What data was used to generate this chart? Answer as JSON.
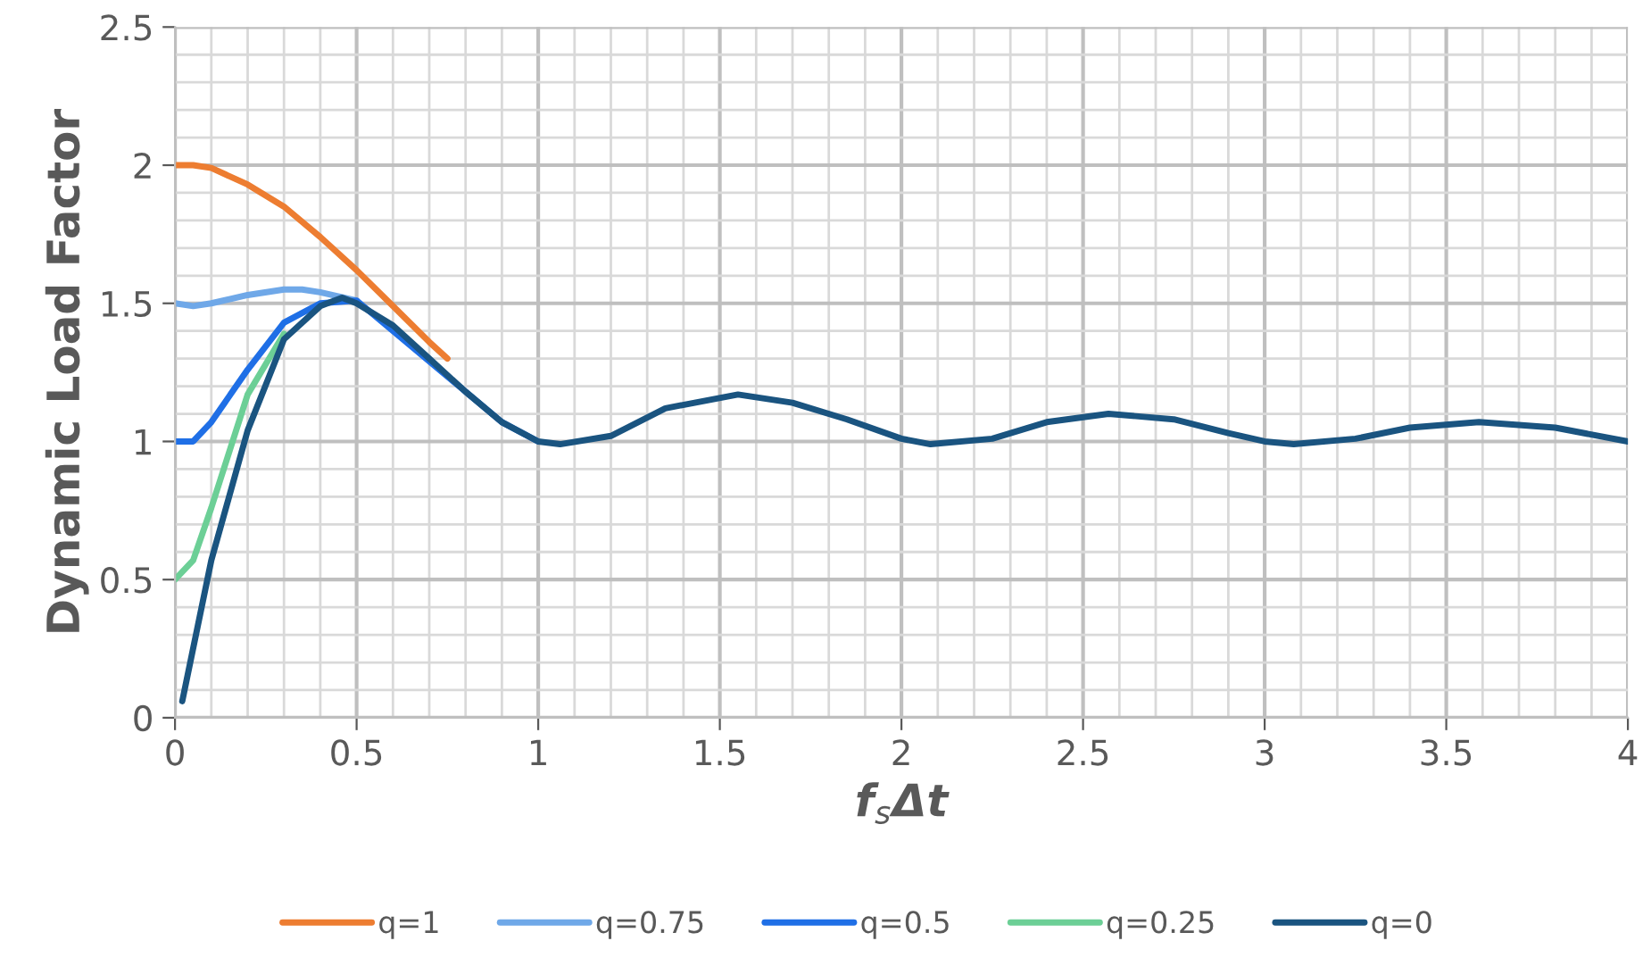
{
  "chart_data": {
    "type": "line",
    "xlabel": "f$_{s}$Δt",
    "ylabel": "Dynamic Load Factor",
    "xlim": [
      0,
      4
    ],
    "ylim": [
      0,
      2.5
    ],
    "xticks": [
      0,
      0.5,
      1,
      1.5,
      2,
      2.5,
      3,
      3.5,
      4
    ],
    "yticks": [
      0,
      0.5,
      1,
      1.5,
      2,
      2.5
    ],
    "grid": true,
    "legend": "bottom",
    "marker": "none",
    "line_style": "solid",
    "series": [
      {
        "name": "q=1",
        "color": "#ed7d31",
        "x": [
          0,
          0.05,
          0.1,
          0.2,
          0.3,
          0.4,
          0.5,
          0.6,
          0.7,
          0.75
        ],
        "values": [
          2.0,
          2.0,
          1.99,
          1.93,
          1.85,
          1.74,
          1.62,
          1.49,
          1.36,
          1.3
        ]
      },
      {
        "name": "q=0.75",
        "color": "#6fa8e8",
        "x": [
          0,
          0.05,
          0.1,
          0.2,
          0.3,
          0.35,
          0.4,
          0.5
        ],
        "values": [
          1.5,
          1.49,
          1.5,
          1.53,
          1.55,
          1.55,
          1.54,
          1.51
        ]
      },
      {
        "name": "q=0.5",
        "color": "#1f6fe6",
        "x": [
          0,
          0.05,
          0.1,
          0.2,
          0.3,
          0.4,
          0.5,
          0.9,
          1.0
        ],
        "values": [
          1.0,
          1.0,
          1.07,
          1.26,
          1.43,
          1.5,
          1.51,
          1.07,
          1.0
        ]
      },
      {
        "name": "q=0.25",
        "color": "#6ccf96",
        "x": [
          0,
          0.05,
          0.1,
          0.2,
          0.3
        ],
        "values": [
          0.5,
          0.57,
          0.76,
          1.17,
          1.39
        ]
      },
      {
        "name": "q=0",
        "color": "#1a5480",
        "x": [
          0.02,
          0.1,
          0.2,
          0.3,
          0.4,
          0.46,
          0.5,
          0.6,
          0.7,
          0.8,
          0.9,
          1.0,
          1.06,
          1.2,
          1.35,
          1.55,
          1.7,
          1.85,
          2.0,
          2.08,
          2.25,
          2.4,
          2.57,
          2.75,
          2.9,
          3.0,
          3.08,
          3.25,
          3.4,
          3.59,
          3.8,
          4.0
        ],
        "values": [
          0.06,
          0.57,
          1.04,
          1.37,
          1.49,
          1.52,
          1.5,
          1.42,
          1.3,
          1.18,
          1.07,
          1.0,
          0.99,
          1.02,
          1.12,
          1.17,
          1.14,
          1.08,
          1.01,
          0.99,
          1.01,
          1.07,
          1.1,
          1.08,
          1.03,
          1.0,
          0.99,
          1.01,
          1.05,
          1.07,
          1.05,
          1.0
        ]
      }
    ]
  }
}
